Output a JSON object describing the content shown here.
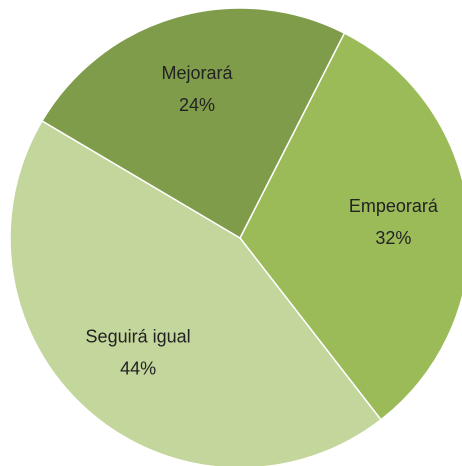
{
  "chart_data": {
    "type": "pie",
    "categories": [
      "Empeorará",
      "Seguirá igual",
      "Mejorará"
    ],
    "values": [
      32,
      44,
      24
    ],
    "value_labels": [
      "32%",
      "44%",
      "24%"
    ],
    "colors": [
      "#9bbb59",
      "#c3d69b",
      "#7f9c4a"
    ]
  }
}
